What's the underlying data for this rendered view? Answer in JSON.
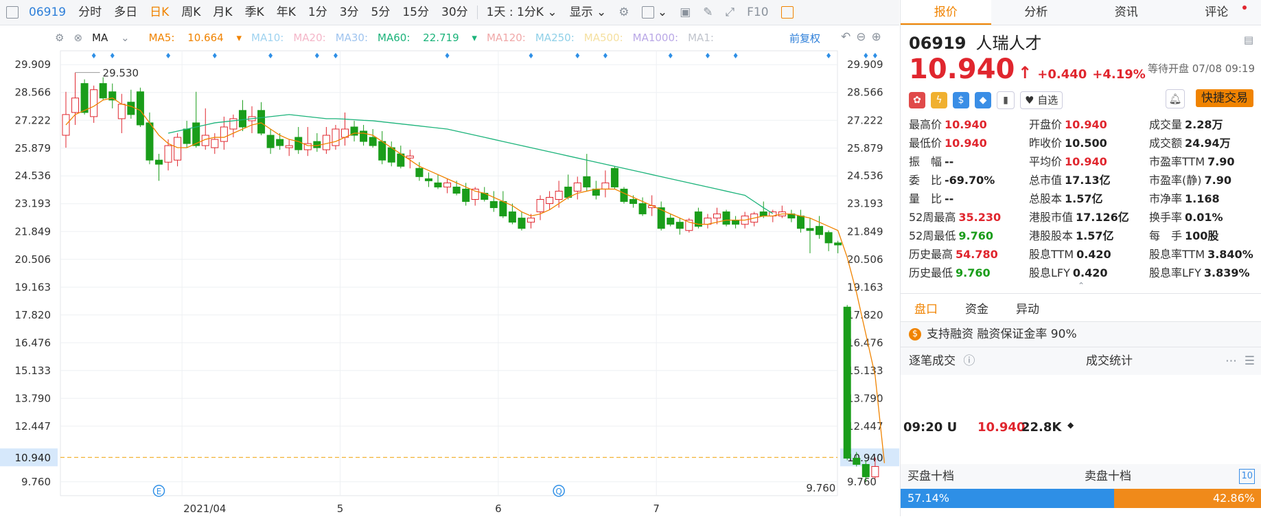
{
  "toolbar": {
    "code": "06919",
    "items": [
      "分时",
      "多日",
      "日K",
      "周K",
      "月K",
      "季K",
      "年K",
      "1分",
      "3分",
      "5分",
      "15分",
      "30分"
    ],
    "active": "日K",
    "period": "1天 : 1分K",
    "display": "显示",
    "f10": "F10"
  },
  "ma_bar": {
    "label": "MA",
    "ma5_label": "MA5:",
    "ma5_value": "10.664",
    "ma10": "MA10:",
    "ma20": "MA20:",
    "ma30": "MA30:",
    "ma60_label": "MA60:",
    "ma60_value": "22.719",
    "ma120": "MA120:",
    "ma250": "MA250:",
    "ma500": "MA500:",
    "ma1000": "MA1000:",
    "ma1": "MA1:",
    "adjust": "前复权",
    "colors": {
      "ma5": "#f08300",
      "ma10": "#9fd3f0",
      "ma20": "#f4b6c8",
      "ma30": "#9fc4ef",
      "ma60": "#1bb37a",
      "ma120": "#f0a8a8",
      "ma250": "#8fd0e8",
      "ma500": "#f5e0a0",
      "ma1000": "#b9a7e6",
      "ma1": "#c0c4cc",
      "adjust": "#2e7fd9"
    }
  },
  "chart_data": {
    "type": "candlestick",
    "y_ticks": [
      "29.909",
      "28.566",
      "27.222",
      "25.879",
      "24.536",
      "23.193",
      "21.849",
      "20.506",
      "19.163",
      "17.820",
      "16.476",
      "15.133",
      "13.790",
      "12.447",
      "9.760"
    ],
    "ylim": [
      9.09,
      30.58
    ],
    "current_price_label": "10.940",
    "current_price": 10.94,
    "x_labels": [
      "2021/04",
      "5",
      "6",
      "7"
    ],
    "x_label_index": [
      13,
      30,
      47,
      64
    ],
    "high_annotation": "29.530",
    "low_annotation": "9.760",
    "event_markers": [
      {
        "index": 10,
        "text": "E"
      },
      {
        "index": 53,
        "text": "Q"
      }
    ],
    "colors": {
      "up": "#e0262e",
      "down": "#1a9d1a",
      "ma5": "#f08300",
      "ma60": "#1bb37a",
      "price_line": "#f0a000"
    },
    "candles": [
      {
        "o": 26.5,
        "h": 28.6,
        "l": 25.9,
        "c": 27.5
      },
      {
        "o": 27.6,
        "h": 29.53,
        "l": 27.0,
        "c": 28.3
      },
      {
        "o": 29.0,
        "h": 29.2,
        "l": 27.5,
        "c": 27.6
      },
      {
        "o": 27.4,
        "h": 28.9,
        "l": 27.1,
        "c": 28.7
      },
      {
        "o": 29.0,
        "h": 29.3,
        "l": 28.2,
        "c": 28.3
      },
      {
        "o": 28.6,
        "h": 29.0,
        "l": 27.8,
        "c": 28.2
      },
      {
        "o": 27.3,
        "h": 28.5,
        "l": 26.6,
        "c": 28.0
      },
      {
        "o": 28.1,
        "h": 28.7,
        "l": 27.3,
        "c": 27.5
      },
      {
        "o": 28.6,
        "h": 28.8,
        "l": 26.9,
        "c": 27.0
      },
      {
        "o": 27.1,
        "h": 27.6,
        "l": 25.1,
        "c": 25.3
      },
      {
        "o": 25.3,
        "h": 25.6,
        "l": 24.3,
        "c": 25.1
      },
      {
        "o": 25.2,
        "h": 26.3,
        "l": 24.8,
        "c": 26.0
      },
      {
        "o": 25.3,
        "h": 26.6,
        "l": 25.0,
        "c": 26.4
      },
      {
        "o": 26.8,
        "h": 27.2,
        "l": 25.9,
        "c": 26.1
      },
      {
        "o": 27.1,
        "h": 28.6,
        "l": 25.9,
        "c": 26.0
      },
      {
        "o": 26.0,
        "h": 27.8,
        "l": 25.8,
        "c": 26.5
      },
      {
        "o": 25.9,
        "h": 26.6,
        "l": 25.6,
        "c": 26.3
      },
      {
        "o": 26.2,
        "h": 27.4,
        "l": 25.8,
        "c": 26.9
      },
      {
        "o": 26.8,
        "h": 27.5,
        "l": 26.4,
        "c": 27.3
      },
      {
        "o": 27.7,
        "h": 28.2,
        "l": 26.7,
        "c": 26.9
      },
      {
        "o": 27.2,
        "h": 27.9,
        "l": 26.6,
        "c": 27.4
      },
      {
        "o": 27.7,
        "h": 28.1,
        "l": 26.5,
        "c": 26.6
      },
      {
        "o": 26.5,
        "h": 26.8,
        "l": 25.6,
        "c": 25.9
      },
      {
        "o": 26.3,
        "h": 26.6,
        "l": 25.8,
        "c": 26.0
      },
      {
        "o": 25.9,
        "h": 26.3,
        "l": 25.5,
        "c": 26.0
      },
      {
        "o": 26.4,
        "h": 26.9,
        "l": 25.6,
        "c": 25.8
      },
      {
        "o": 25.8,
        "h": 26.9,
        "l": 25.5,
        "c": 26.1
      },
      {
        "o": 26.2,
        "h": 26.6,
        "l": 25.7,
        "c": 25.9
      },
      {
        "o": 25.8,
        "h": 26.9,
        "l": 25.6,
        "c": 26.5
      },
      {
        "o": 26.0,
        "h": 27.0,
        "l": 25.8,
        "c": 26.8
      },
      {
        "o": 26.4,
        "h": 27.6,
        "l": 26.0,
        "c": 26.8
      },
      {
        "o": 26.9,
        "h": 27.2,
        "l": 26.2,
        "c": 26.5
      },
      {
        "o": 26.7,
        "h": 27.0,
        "l": 26.0,
        "c": 26.2
      },
      {
        "o": 26.4,
        "h": 26.8,
        "l": 25.9,
        "c": 26.0
      },
      {
        "o": 26.2,
        "h": 26.7,
        "l": 25.1,
        "c": 25.3
      },
      {
        "o": 25.9,
        "h": 26.2,
        "l": 25.0,
        "c": 25.2
      },
      {
        "o": 25.6,
        "h": 26.0,
        "l": 24.9,
        "c": 25.0
      },
      {
        "o": 25.4,
        "h": 25.8,
        "l": 24.9,
        "c": 25.5
      },
      {
        "o": 24.9,
        "h": 25.2,
        "l": 24.3,
        "c": 24.5
      },
      {
        "o": 24.4,
        "h": 24.7,
        "l": 24.0,
        "c": 24.3
      },
      {
        "o": 24.2,
        "h": 24.6,
        "l": 23.9,
        "c": 24.0
      },
      {
        "o": 24.0,
        "h": 24.4,
        "l": 23.7,
        "c": 24.2
      },
      {
        "o": 24.0,
        "h": 24.3,
        "l": 23.6,
        "c": 23.7
      },
      {
        "o": 23.9,
        "h": 24.2,
        "l": 23.1,
        "c": 23.3
      },
      {
        "o": 23.4,
        "h": 24.0,
        "l": 23.1,
        "c": 23.9
      },
      {
        "o": 23.7,
        "h": 24.0,
        "l": 23.3,
        "c": 23.4
      },
      {
        "o": 23.3,
        "h": 23.8,
        "l": 22.8,
        "c": 23.0
      },
      {
        "o": 23.3,
        "h": 23.8,
        "l": 22.5,
        "c": 22.6
      },
      {
        "o": 22.8,
        "h": 23.2,
        "l": 22.2,
        "c": 22.3
      },
      {
        "o": 22.5,
        "h": 22.8,
        "l": 21.9,
        "c": 22.0
      },
      {
        "o": 22.3,
        "h": 22.7,
        "l": 22.0,
        "c": 22.5
      },
      {
        "o": 22.8,
        "h": 23.6,
        "l": 22.4,
        "c": 23.4
      },
      {
        "o": 23.2,
        "h": 23.8,
        "l": 22.9,
        "c": 23.5
      },
      {
        "o": 23.4,
        "h": 24.3,
        "l": 23.0,
        "c": 23.8
      },
      {
        "o": 24.0,
        "h": 24.6,
        "l": 23.4,
        "c": 23.5
      },
      {
        "o": 23.8,
        "h": 24.5,
        "l": 23.4,
        "c": 24.2
      },
      {
        "o": 24.5,
        "h": 25.6,
        "l": 23.8,
        "c": 24.0
      },
      {
        "o": 23.9,
        "h": 24.3,
        "l": 23.4,
        "c": 23.6
      },
      {
        "o": 23.9,
        "h": 24.8,
        "l": 23.5,
        "c": 24.2
      },
      {
        "o": 24.9,
        "h": 25.0,
        "l": 23.9,
        "c": 24.0
      }
    ],
    "candles_late": [
      {
        "o": 23.9,
        "h": 24.0,
        "l": 23.2,
        "c": 23.3
      },
      {
        "o": 23.4,
        "h": 23.6,
        "l": 23.0,
        "c": 23.2
      },
      {
        "o": 23.2,
        "h": 23.5,
        "l": 22.6,
        "c": 22.7
      },
      {
        "o": 23.0,
        "h": 23.6,
        "l": 22.6,
        "c": 23.1
      },
      {
        "o": 23.0,
        "h": 23.3,
        "l": 21.9,
        "c": 22.0
      },
      {
        "o": 22.5,
        "h": 22.7,
        "l": 22.1,
        "c": 22.2
      },
      {
        "o": 22.3,
        "h": 22.5,
        "l": 21.7,
        "c": 22.0
      },
      {
        "o": 21.9,
        "h": 22.5,
        "l": 21.8,
        "c": 22.4
      },
      {
        "o": 22.8,
        "h": 23.0,
        "l": 22.0,
        "c": 22.1
      },
      {
        "o": 22.2,
        "h": 22.7,
        "l": 22.0,
        "c": 22.5
      },
      {
        "o": 22.5,
        "h": 23.0,
        "l": 22.2,
        "c": 22.7
      },
      {
        "o": 22.8,
        "h": 22.9,
        "l": 22.1,
        "c": 22.2
      },
      {
        "o": 22.4,
        "h": 22.6,
        "l": 22.0,
        "c": 22.2
      },
      {
        "o": 22.2,
        "h": 22.8,
        "l": 22.0,
        "c": 22.6
      },
      {
        "o": 22.3,
        "h": 22.8,
        "l": 22.1,
        "c": 22.7
      },
      {
        "o": 22.8,
        "h": 23.3,
        "l": 22.5,
        "c": 22.6
      },
      {
        "o": 22.6,
        "h": 22.9,
        "l": 22.3,
        "c": 22.8
      },
      {
        "o": 22.6,
        "h": 23.1,
        "l": 22.5,
        "c": 22.8
      },
      {
        "o": 22.7,
        "h": 22.9,
        "l": 22.3,
        "c": 22.5
      },
      {
        "o": 22.6,
        "h": 22.9,
        "l": 21.8,
        "c": 22.0
      },
      {
        "o": 22.0,
        "h": 22.5,
        "l": 20.8,
        "c": 21.9
      },
      {
        "o": 22.1,
        "h": 22.6,
        "l": 21.5,
        "c": 21.7
      },
      {
        "o": 21.8,
        "h": 21.9,
        "l": 20.9,
        "c": 21.3
      },
      {
        "o": 21.3,
        "h": 21.4,
        "l": 20.8,
        "c": 21.2
      },
      {
        "o": 18.2,
        "h": 18.3,
        "l": 10.8,
        "c": 10.9
      },
      {
        "o": 10.9,
        "h": 11.2,
        "l": 10.5,
        "c": 10.6
      },
      {
        "o": 10.6,
        "h": 10.8,
        "l": 9.76,
        "c": 10.0
      },
      {
        "o": 10.0,
        "h": 10.94,
        "l": 9.9,
        "c": 10.5
      }
    ],
    "ma5": [
      27.0,
      27.5,
      27.7,
      27.9,
      28.2,
      28.3,
      28.0,
      27.9,
      27.7,
      27.1,
      26.5,
      26.1,
      25.9,
      25.9,
      26.1,
      26.3,
      26.4,
      26.4,
      26.6,
      26.8,
      27.0,
      27.1,
      26.8,
      26.5,
      26.3,
      26.2,
      26.0,
      26.0,
      26.1,
      26.2,
      26.4,
      26.6,
      26.6,
      26.5,
      26.2,
      25.9,
      25.6,
      25.3,
      25.0,
      24.8,
      24.6,
      24.4,
      24.2,
      24.0,
      23.8,
      23.7,
      23.5,
      23.3,
      23.1,
      22.8,
      22.6,
      22.7,
      22.9,
      23.2,
      23.5,
      23.7,
      23.8,
      23.9,
      23.9,
      23.9,
      23.7,
      23.5,
      23.3,
      23.1,
      22.9,
      22.7,
      22.5,
      22.3,
      22.2,
      22.2,
      22.3,
      22.4,
      22.4,
      22.4,
      22.5,
      22.6,
      22.6,
      22.7,
      22.7,
      22.6,
      22.5,
      22.3,
      22.1,
      21.9,
      20.6,
      18.9,
      16.9,
      14.9,
      10.664
    ],
    "ma60_start": 11,
    "ma60": [
      26.6,
      26.7,
      26.8,
      26.9,
      27.0,
      27.1,
      27.15,
      27.2,
      27.25,
      27.3,
      27.35,
      27.4,
      27.45,
      27.5,
      27.45,
      27.4,
      27.35,
      27.3,
      27.3,
      27.28,
      27.25,
      27.22,
      27.2,
      27.15,
      27.1,
      27.05,
      27.0,
      26.95,
      26.9,
      26.85,
      26.8,
      26.7,
      26.6,
      26.5,
      26.4,
      26.3,
      26.2,
      26.1,
      26.0,
      25.9,
      25.8,
      25.7,
      25.6,
      25.5,
      25.4,
      25.3,
      25.2,
      25.1,
      25.0,
      24.9,
      24.8,
      24.7,
      24.6,
      24.5,
      24.4,
      24.3,
      24.2,
      24.1,
      24.0,
      23.9,
      23.8,
      23.7,
      23.6,
      23.3,
      23.0,
      22.719
    ]
  },
  "panel": {
    "tabs": [
      "报价",
      "分析",
      "资讯",
      "评论"
    ],
    "active_tab": "报价",
    "code": "06919",
    "name": "人瑞人才",
    "price": "10.940",
    "change": "+0.440",
    "change_pct": "+4.19%",
    "status": "等待开盘 07/08 09:19",
    "watch": "自选",
    "trade_btn": "快捷交易",
    "grid": [
      [
        {
          "l": "最高价",
          "v": "10.940",
          "c": "red"
        },
        {
          "l": "开盘价",
          "v": "10.940",
          "c": "red"
        },
        {
          "l": "成交量",
          "v": "2.28万",
          "c": ""
        }
      ],
      [
        {
          "l": "最低价",
          "v": "10.940",
          "c": "red"
        },
        {
          "l": "昨收价",
          "v": "10.500",
          "c": ""
        },
        {
          "l": "成交额",
          "v": "24.94万",
          "c": ""
        }
      ],
      [
        {
          "l": "振　幅",
          "v": "--",
          "c": ""
        },
        {
          "l": "平均价",
          "v": "10.940",
          "c": "red"
        },
        {
          "l": "市盈率TTM",
          "v": "7.90",
          "c": ""
        }
      ],
      [
        {
          "l": "委　比",
          "v": "-69.70%",
          "c": ""
        },
        {
          "l": "总市值",
          "v": "17.13亿",
          "c": ""
        },
        {
          "l": "市盈率(静)",
          "v": "7.90",
          "c": ""
        }
      ],
      [
        {
          "l": "量　比",
          "v": "--",
          "c": ""
        },
        {
          "l": "总股本",
          "v": "1.57亿",
          "c": ""
        },
        {
          "l": "市净率",
          "v": "1.168",
          "c": ""
        }
      ],
      [
        {
          "l": "52周最高",
          "v": "35.230",
          "c": "red"
        },
        {
          "l": "港股市值",
          "v": "17.126亿",
          "c": ""
        },
        {
          "l": "换手率",
          "v": "0.01%",
          "c": ""
        }
      ],
      [
        {
          "l": "52周最低",
          "v": "9.760",
          "c": "green"
        },
        {
          "l": "港股股本",
          "v": "1.57亿",
          "c": ""
        },
        {
          "l": "每　手",
          "v": "100股",
          "c": ""
        }
      ],
      [
        {
          "l": "历史最高",
          "v": "54.780",
          "c": "red"
        },
        {
          "l": "股息TTM",
          "v": "0.420",
          "c": ""
        },
        {
          "l": "股息率TTM",
          "v": "3.840%",
          "c": ""
        }
      ],
      [
        {
          "l": "历史最低",
          "v": "9.760",
          "c": "green"
        },
        {
          "l": "股息LFY",
          "v": "0.420",
          "c": ""
        },
        {
          "l": "股息率LFY",
          "v": "3.839%",
          "c": ""
        }
      ]
    ],
    "subtabs": [
      "盘口",
      "资金",
      "异动"
    ],
    "active_subtab": "盘口",
    "margin_text": "支持融资 融资保证金率 90%",
    "trade_title": "逐笔成交",
    "trade_stats": "成交统计",
    "trade_time": "09:20 U",
    "trade_price": "10.940",
    "trade_vol": "22.8K",
    "buy_title": "买盘十档",
    "sell_title": "卖盘十档",
    "buy_pct": "57.14%",
    "buy_fraction": 0.5714,
    "sell_pct": "42.86%"
  }
}
